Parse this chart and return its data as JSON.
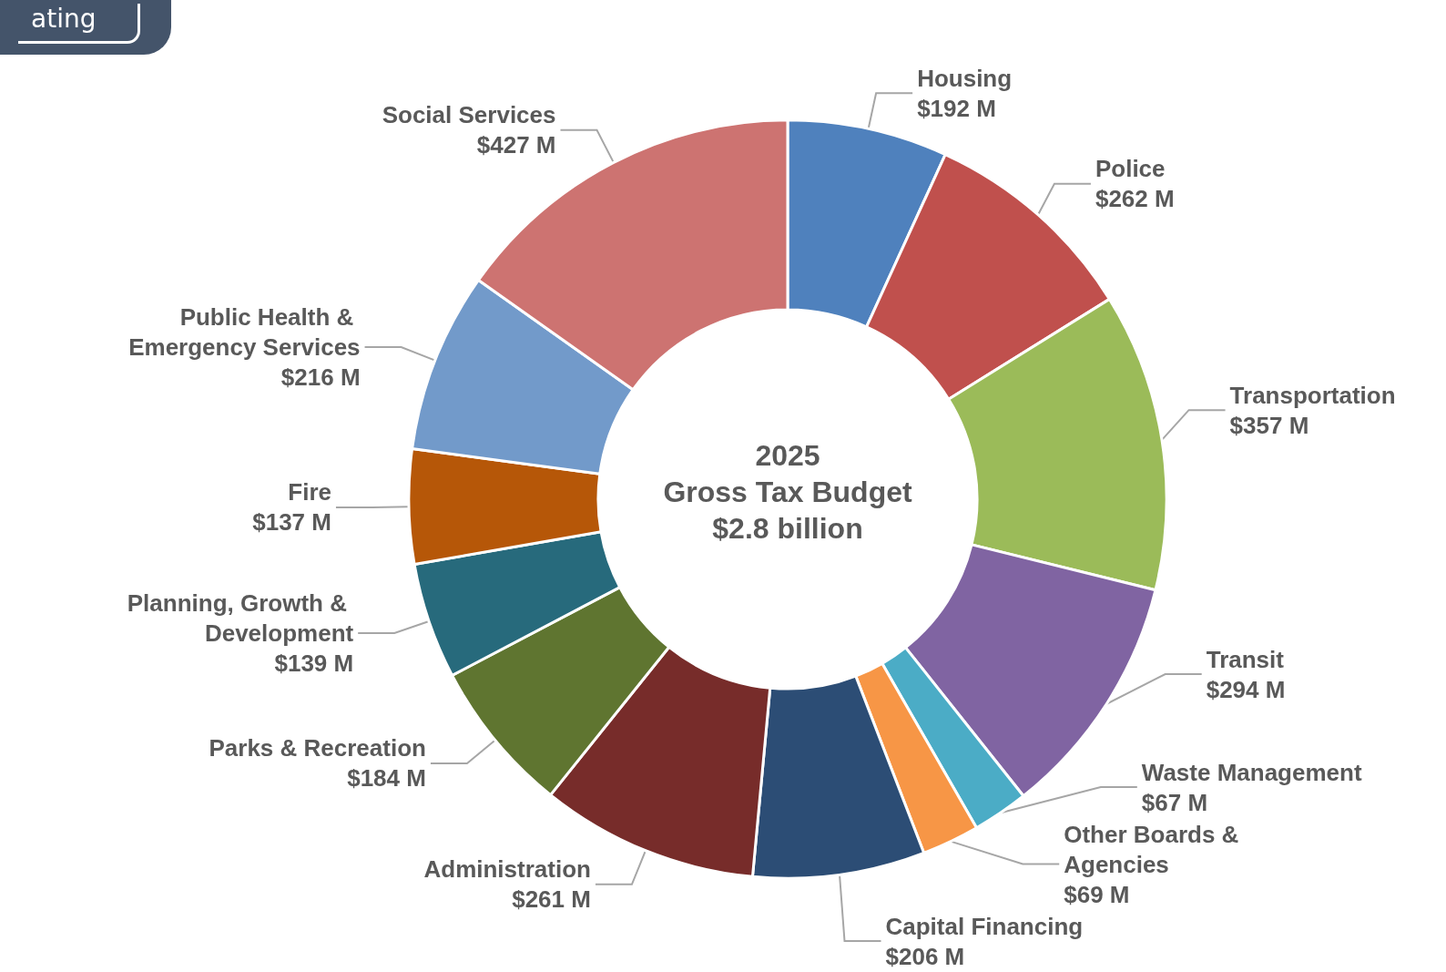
{
  "chart_data": {
    "type": "donut",
    "legend": false,
    "categories": [
      "Housing",
      "Police",
      "Transportation",
      "Transit",
      "Waste Management",
      "Other Boards & Agencies",
      "Capital Financing",
      "Administration",
      "Parks & Recreation",
      "Planning, Growth & Development",
      "Fire",
      "Public Health & Emergency Services",
      "Social Services"
    ],
    "values": [
      192,
      262,
      357,
      294,
      67,
      69,
      206,
      261,
      184,
      139,
      137,
      216,
      427
    ],
    "value_labels": [
      "$192 M",
      "$262 M",
      "$357 M",
      "$294 M",
      "$67 M",
      "$69 M",
      "$206 M",
      "$261 M",
      "$184 M",
      "$139 M",
      "$137 M",
      "$216 M",
      "$427 M"
    ],
    "colors": [
      "#4f81bd",
      "#c0504d",
      "#9bbb59",
      "#8064a2",
      "#4bacc6",
      "#f79646",
      "#2c4d75",
      "#772c2a",
      "#5f7530",
      "#276a7c",
      "#b65708",
      "#729aca",
      "#cd7371"
    ],
    "annotations": [
      "2025",
      "Gross Tax Budget",
      "$2.8 billion",
      "ating"
    ]
  }
}
